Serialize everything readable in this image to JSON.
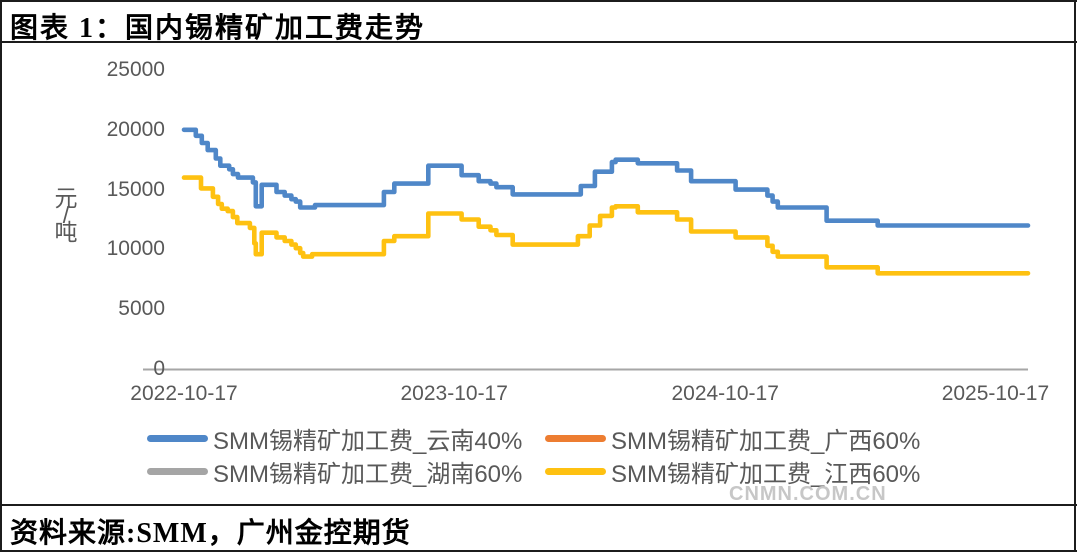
{
  "figure": {
    "title": "图表 1：国内锡精矿加工费走势",
    "source": "资料来源:SMM，广州金控期货",
    "watermark": "CNMN.COM.CN"
  },
  "colors": {
    "border": "#1c1c1c",
    "axis_line": "#a6a6a6",
    "axis_text": "#595959",
    "legend_text": "#595959",
    "watermark": "#c7c7c7"
  },
  "chart_data": {
    "type": "line",
    "line_style": "step-after",
    "grid": false,
    "legend_position": "bottom",
    "x_axis": {
      "start": "2022-10-17",
      "end": "2025-11-30",
      "tick_labels": [
        "2022-10-17",
        "2023-10-17",
        "2024-10-17",
        "2025-10-17"
      ]
    },
    "y_axis": {
      "title": "元/吨",
      "min": 0,
      "max": 25000,
      "tick_interval": 5000,
      "tick_labels": [
        25000,
        20000,
        15000,
        10000,
        5000,
        0
      ]
    },
    "series": [
      {
        "key": "yunnan-40",
        "name": "SMM锡精矿加工费_云南40%",
        "color": "#4f87c8",
        "points": [
          [
            "2022-10-17",
            20000
          ],
          [
            "2022-11-02",
            19500
          ],
          [
            "2022-11-10",
            18900
          ],
          [
            "2022-11-18",
            18300
          ],
          [
            "2022-11-29",
            17600
          ],
          [
            "2022-12-05",
            17000
          ],
          [
            "2022-12-17",
            16700
          ],
          [
            "2022-12-22",
            16300
          ],
          [
            "2022-12-29",
            16000
          ],
          [
            "2023-01-18",
            15600
          ],
          [
            "2023-01-22",
            13600
          ],
          [
            "2023-01-30",
            15400
          ],
          [
            "2023-02-19",
            14800
          ],
          [
            "2023-03-02",
            14500
          ],
          [
            "2023-03-11",
            14200
          ],
          [
            "2023-03-17",
            14000
          ],
          [
            "2023-03-23",
            13500
          ],
          [
            "2023-04-12",
            13700
          ],
          [
            "2023-07-14",
            14800
          ],
          [
            "2023-07-28",
            15500
          ],
          [
            "2023-09-12",
            17000
          ],
          [
            "2023-10-27",
            16200
          ],
          [
            "2023-11-19",
            15700
          ],
          [
            "2023-12-05",
            15500
          ],
          [
            "2023-12-13",
            15200
          ],
          [
            "2024-01-04",
            14600
          ],
          [
            "2024-04-05",
            15300
          ],
          [
            "2024-04-24",
            16500
          ],
          [
            "2024-05-17",
            17300
          ],
          [
            "2024-05-22",
            17500
          ],
          [
            "2024-06-21",
            17200
          ],
          [
            "2024-08-13",
            16600
          ],
          [
            "2024-09-01",
            15700
          ],
          [
            "2024-10-31",
            15000
          ],
          [
            "2024-12-13",
            14500
          ],
          [
            "2024-12-20",
            14000
          ],
          [
            "2024-12-27",
            13500
          ],
          [
            "2025-03-03",
            12400
          ],
          [
            "2025-05-11",
            12000
          ],
          [
            "2025-11-30",
            12000
          ]
        ]
      },
      {
        "key": "guangxi-60",
        "name": "SMM锡精矿加工费_广西60%",
        "color": "#ed7d31",
        "points": []
      },
      {
        "key": "hunan-60",
        "name": "SMM锡精矿加工费_湖南60%",
        "color": "#a5a5a5",
        "points": []
      },
      {
        "key": "jiangxi-60",
        "name": "SMM锡精矿加工费_江西60%",
        "color": "#fec111",
        "points": [
          [
            "2022-10-17",
            16000
          ],
          [
            "2022-11-09",
            15100
          ],
          [
            "2022-11-25",
            14400
          ],
          [
            "2022-12-02",
            13800
          ],
          [
            "2022-12-07",
            13400
          ],
          [
            "2022-12-15",
            13200
          ],
          [
            "2022-12-22",
            12700
          ],
          [
            "2022-12-28",
            12200
          ],
          [
            "2023-01-14",
            11800
          ],
          [
            "2023-01-20",
            10500
          ],
          [
            "2023-01-22",
            9600
          ],
          [
            "2023-01-30",
            11400
          ],
          [
            "2023-02-19",
            11000
          ],
          [
            "2023-03-02",
            10700
          ],
          [
            "2023-03-11",
            10400
          ],
          [
            "2023-03-17",
            10100
          ],
          [
            "2023-03-23",
            9700
          ],
          [
            "2023-03-27",
            9400
          ],
          [
            "2023-04-08",
            9600
          ],
          [
            "2023-07-14",
            10700
          ],
          [
            "2023-07-28",
            11100
          ],
          [
            "2023-09-12",
            13000
          ],
          [
            "2023-10-27",
            12500
          ],
          [
            "2023-11-19",
            11900
          ],
          [
            "2023-12-05",
            11600
          ],
          [
            "2023-12-13",
            11200
          ],
          [
            "2024-01-04",
            10400
          ],
          [
            "2024-04-01",
            11100
          ],
          [
            "2024-04-17",
            12000
          ],
          [
            "2024-05-01",
            12800
          ],
          [
            "2024-05-17",
            13500
          ],
          [
            "2024-05-22",
            13600
          ],
          [
            "2024-06-21",
            13100
          ],
          [
            "2024-08-13",
            12500
          ],
          [
            "2024-09-01",
            11500
          ],
          [
            "2024-10-31",
            11000
          ],
          [
            "2024-12-13",
            10300
          ],
          [
            "2024-12-20",
            9800
          ],
          [
            "2024-12-27",
            9400
          ],
          [
            "2025-03-03",
            8500
          ],
          [
            "2025-05-11",
            8000
          ],
          [
            "2025-11-30",
            8000
          ]
        ]
      }
    ]
  }
}
